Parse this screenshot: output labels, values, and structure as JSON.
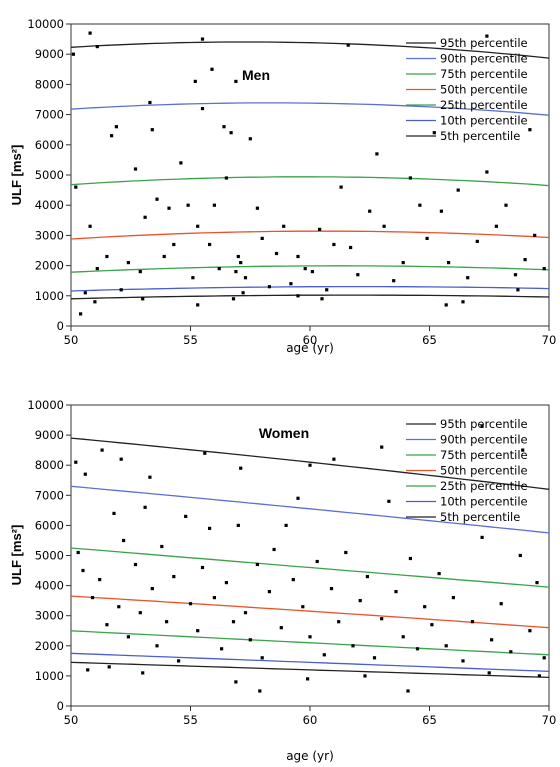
{
  "chart_data": [
    {
      "type": "scatter",
      "title": "Men",
      "xlabel": "age (yr)",
      "ylabel": "ULF [ms²]",
      "xlim": [
        50,
        70
      ],
      "ylim": [
        0,
        10000
      ],
      "xticks": [
        "50",
        "55",
        "60",
        "65",
        "70"
      ],
      "yticks": [
        "0",
        "1000",
        "2000",
        "3000",
        "4000",
        "5000",
        "6000",
        "7000",
        "8000",
        "9000",
        "10000"
      ],
      "grid": false,
      "legend_position": "top-right",
      "percentile_curves": [
        {
          "name": "95th percentile",
          "color": "#222222",
          "x": [
            50,
            60,
            70
          ],
          "y": [
            9230,
            9380,
            8870
          ]
        },
        {
          "name": "90th percentile",
          "color": "#5b6fd6",
          "x": [
            50,
            60,
            70
          ],
          "y": [
            7180,
            7380,
            6980
          ]
        },
        {
          "name": "75th percentile",
          "color": "#3aa24a",
          "x": [
            50,
            60,
            70
          ],
          "y": [
            4680,
            4940,
            4650
          ]
        },
        {
          "name": "50th percentile",
          "color": "#e8542a",
          "x": [
            50,
            60,
            70
          ],
          "y": [
            2880,
            3140,
            2930
          ]
        },
        {
          "name": "25th percentile",
          "color": "#3aa24a",
          "x": [
            50,
            60,
            70
          ],
          "y": [
            1780,
            1990,
            1860
          ]
        },
        {
          "name": "10th percentile",
          "color": "#4a5ed0",
          "x": [
            50,
            60,
            70
          ],
          "y": [
            1160,
            1300,
            1240
          ]
        },
        {
          "name": "5th percentile",
          "color": "#222222",
          "x": [
            50,
            60,
            70
          ],
          "y": [
            900,
            1020,
            960
          ]
        }
      ],
      "points": [
        [
          50.1,
          9000
        ],
        [
          50.8,
          9700
        ],
        [
          51.1,
          9250
        ],
        [
          53.3,
          7400
        ],
        [
          55.2,
          8100
        ],
        [
          55.5,
          9500
        ],
        [
          55.9,
          8500
        ],
        [
          56.9,
          8100
        ],
        [
          61.6,
          9300
        ],
        [
          67.4,
          9600
        ],
        [
          69.2,
          6500
        ],
        [
          50.2,
          4600
        ],
        [
          50.6,
          1100
        ],
        [
          50.8,
          3300
        ],
        [
          51.1,
          1900
        ],
        [
          51.5,
          2300
        ],
        [
          51.7,
          6300
        ],
        [
          51.9,
          6600
        ],
        [
          52.1,
          1200
        ],
        [
          52.4,
          2100
        ],
        [
          52.7,
          5200
        ],
        [
          52.9,
          1800
        ],
        [
          53.1,
          3600
        ],
        [
          53.4,
          6500
        ],
        [
          53.6,
          4200
        ],
        [
          53.9,
          2300
        ],
        [
          54.1,
          3900
        ],
        [
          54.3,
          2700
        ],
        [
          54.6,
          5400
        ],
        [
          54.9,
          4000
        ],
        [
          55.1,
          1600
        ],
        [
          55.3,
          3300
        ],
        [
          55.5,
          7200
        ],
        [
          55.8,
          2700
        ],
        [
          56.0,
          4000
        ],
        [
          56.2,
          1900
        ],
        [
          56.4,
          6600
        ],
        [
          56.5,
          4900
        ],
        [
          56.7,
          6400
        ],
        [
          56.9,
          1800
        ],
        [
          57.0,
          2300
        ],
        [
          57.1,
          2100
        ],
        [
          57.3,
          1600
        ],
        [
          57.5,
          6200
        ],
        [
          57.8,
          3900
        ],
        [
          58.0,
          2900
        ],
        [
          58.3,
          1300
        ],
        [
          58.6,
          2400
        ],
        [
          58.9,
          3300
        ],
        [
          59.2,
          1400
        ],
        [
          59.5,
          2300
        ],
        [
          59.8,
          1900
        ],
        [
          60.1,
          1800
        ],
        [
          60.4,
          3200
        ],
        [
          60.7,
          1200
        ],
        [
          61.0,
          2700
        ],
        [
          61.3,
          4600
        ],
        [
          61.7,
          2600
        ],
        [
          62.0,
          1700
        ],
        [
          62.5,
          3800
        ],
        [
          62.8,
          5700
        ],
        [
          63.1,
          3300
        ],
        [
          63.5,
          1500
        ],
        [
          63.9,
          2100
        ],
        [
          64.2,
          4900
        ],
        [
          64.6,
          4000
        ],
        [
          64.9,
          2900
        ],
        [
          65.2,
          6400
        ],
        [
          65.5,
          3800
        ],
        [
          65.8,
          2100
        ],
        [
          66.2,
          4500
        ],
        [
          66.6,
          1600
        ],
        [
          67.0,
          2800
        ],
        [
          67.4,
          5100
        ],
        [
          67.8,
          3300
        ],
        [
          68.2,
          4000
        ],
        [
          68.6,
          1700
        ],
        [
          69.0,
          2200
        ],
        [
          69.4,
          3000
        ],
        [
          69.8,
          1900
        ],
        [
          50.4,
          400
        ],
        [
          51.0,
          800
        ],
        [
          53.0,
          900
        ],
        [
          55.3,
          700
        ],
        [
          56.8,
          900
        ],
        [
          57.2,
          1100
        ],
        [
          59.5,
          1000
        ],
        [
          60.5,
          900
        ],
        [
          65.7,
          700
        ],
        [
          66.4,
          800
        ],
        [
          68.7,
          1200
        ]
      ]
    },
    {
      "type": "scatter",
      "title": "Women",
      "xlabel": "age (yr)",
      "ylabel": "ULF [ms²]",
      "xlim": [
        50,
        70
      ],
      "ylim": [
        0,
        10000
      ],
      "xticks": [
        "50",
        "55",
        "60",
        "65",
        "70"
      ],
      "yticks": [
        "0",
        "1000",
        "2000",
        "3000",
        "4000",
        "5000",
        "6000",
        "7000",
        "8000",
        "9000",
        "10000"
      ],
      "grid": false,
      "legend_position": "top-right",
      "percentile_curves": [
        {
          "name": "95th percentile",
          "color": "#222222",
          "x": [
            50,
            60,
            70
          ],
          "y": [
            8900,
            8100,
            7200
          ]
        },
        {
          "name": "90th percentile",
          "color": "#5b6fd6",
          "x": [
            50,
            60,
            70
          ],
          "y": [
            7300,
            6550,
            5750
          ]
        },
        {
          "name": "75th percentile",
          "color": "#3aa24a",
          "x": [
            50,
            60,
            70
          ],
          "y": [
            5250,
            4600,
            3950
          ]
        },
        {
          "name": "50th percentile",
          "color": "#e8542a",
          "x": [
            50,
            60,
            70
          ],
          "y": [
            3650,
            3150,
            2600
          ]
        },
        {
          "name": "25th percentile",
          "color": "#3aa24a",
          "x": [
            50,
            60,
            70
          ],
          "y": [
            2500,
            2100,
            1700
          ]
        },
        {
          "name": "10th percentile",
          "color": "#4a5ed0",
          "x": [
            50,
            60,
            70
          ],
          "y": [
            1750,
            1450,
            1150
          ]
        },
        {
          "name": "5th percentile",
          "color": "#222222",
          "x": [
            50,
            60,
            70
          ],
          "y": [
            1450,
            1200,
            950
          ]
        }
      ],
      "points": [
        [
          50.2,
          8100
        ],
        [
          50.6,
          7700
        ],
        [
          51.3,
          8500
        ],
        [
          52.1,
          8200
        ],
        [
          53.3,
          7600
        ],
        [
          55.6,
          8400
        ],
        [
          57.1,
          7900
        ],
        [
          60.0,
          8000
        ],
        [
          61.0,
          8200
        ],
        [
          63.0,
          8600
        ],
        [
          67.2,
          9300
        ],
        [
          68.9,
          8500
        ],
        [
          50.3,
          5100
        ],
        [
          50.5,
          4500
        ],
        [
          50.9,
          3600
        ],
        [
          51.2,
          4200
        ],
        [
          51.5,
          2700
        ],
        [
          51.8,
          6400
        ],
        [
          52.0,
          3300
        ],
        [
          52.2,
          5500
        ],
        [
          52.4,
          2300
        ],
        [
          52.7,
          4700
        ],
        [
          52.9,
          3100
        ],
        [
          53.1,
          6600
        ],
        [
          53.4,
          3900
        ],
        [
          53.6,
          2000
        ],
        [
          53.8,
          5300
        ],
        [
          54.0,
          2800
        ],
        [
          54.3,
          4300
        ],
        [
          54.5,
          1500
        ],
        [
          54.8,
          6300
        ],
        [
          55.0,
          3400
        ],
        [
          55.3,
          2500
        ],
        [
          55.5,
          4600
        ],
        [
          55.8,
          5900
        ],
        [
          56.0,
          3600
        ],
        [
          56.3,
          1900
        ],
        [
          56.5,
          4100
        ],
        [
          56.8,
          2800
        ],
        [
          57.0,
          6000
        ],
        [
          57.3,
          3100
        ],
        [
          57.5,
          2200
        ],
        [
          57.8,
          4700
        ],
        [
          58.0,
          1600
        ],
        [
          58.3,
          3800
        ],
        [
          58.5,
          5200
        ],
        [
          58.8,
          2600
        ],
        [
          59.0,
          6000
        ],
        [
          59.3,
          4200
        ],
        [
          59.5,
          6900
        ],
        [
          59.7,
          3300
        ],
        [
          60.0,
          2300
        ],
        [
          60.3,
          4800
        ],
        [
          60.6,
          1700
        ],
        [
          60.9,
          3900
        ],
        [
          61.2,
          2800
        ],
        [
          61.5,
          5100
        ],
        [
          61.8,
          2000
        ],
        [
          62.1,
          3500
        ],
        [
          62.4,
          4300
        ],
        [
          62.7,
          1600
        ],
        [
          63.0,
          2900
        ],
        [
          63.3,
          6800
        ],
        [
          63.6,
          3800
        ],
        [
          63.9,
          2300
        ],
        [
          64.2,
          4900
        ],
        [
          64.5,
          1900
        ],
        [
          64.8,
          3300
        ],
        [
          65.1,
          2700
        ],
        [
          65.4,
          4400
        ],
        [
          65.7,
          2000
        ],
        [
          66.0,
          3600
        ],
        [
          66.4,
          1500
        ],
        [
          66.8,
          2800
        ],
        [
          67.2,
          5600
        ],
        [
          67.6,
          2200
        ],
        [
          68.0,
          3400
        ],
        [
          68.4,
          1800
        ],
        [
          68.8,
          5000
        ],
        [
          69.2,
          2500
        ],
        [
          69.5,
          4100
        ],
        [
          69.8,
          1600
        ],
        [
          50.7,
          1200
        ],
        [
          51.6,
          1300
        ],
        [
          53.0,
          1100
        ],
        [
          56.9,
          800
        ],
        [
          57.9,
          500
        ],
        [
          59.9,
          900
        ],
        [
          62.3,
          1000
        ],
        [
          64.1,
          500
        ],
        [
          67.5,
          1100
        ],
        [
          69.6,
          1000
        ]
      ]
    }
  ]
}
